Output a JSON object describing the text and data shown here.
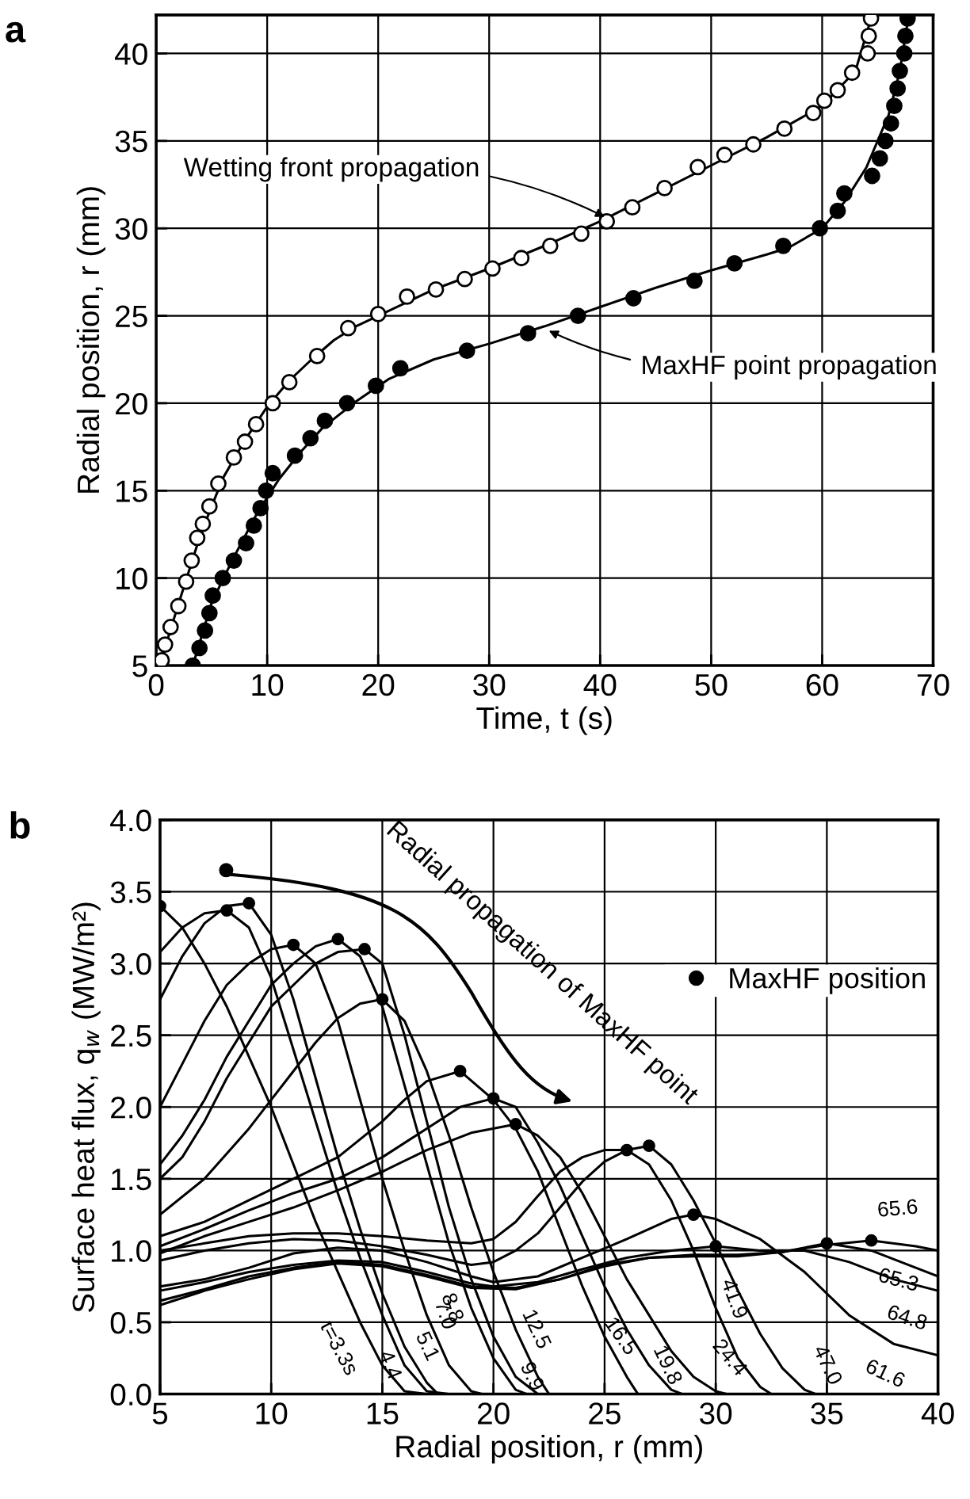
{
  "chart_data": [
    {
      "type": "scatter",
      "title": "a",
      "xlabel": "Time, t (s)",
      "ylabel": "Radial position, r (mm)",
      "xlim": [
        0,
        70
      ],
      "xticks": [
        0,
        10,
        20,
        30,
        40,
        50,
        60,
        70
      ],
      "ylim": [
        5,
        42.2
      ],
      "yticks": [
        5,
        10,
        15,
        20,
        25,
        30,
        35,
        40
      ],
      "grid": true,
      "legend": false,
      "marker": "circle",
      "series": [
        {
          "type": "line",
          "marker": "none",
          "color": "#000000",
          "x": [
            0.3,
            2,
            4,
            6,
            8,
            10,
            12,
            14,
            16,
            18,
            20,
            25,
            30,
            35,
            40,
            45,
            50,
            55,
            60,
            63,
            64.5
          ],
          "values": [
            5,
            8.5,
            12.5,
            15.7,
            17.9,
            19.8,
            21.3,
            22.5,
            23.6,
            24.4,
            25.0,
            26.5,
            27.7,
            29.0,
            30.4,
            32.0,
            33.6,
            35.2,
            37.0,
            39.0,
            42.2
          ]
        },
        {
          "type": "line",
          "marker": "none",
          "color": "#000000",
          "x": [
            3.3,
            5,
            7,
            9,
            11,
            13,
            15,
            18,
            21,
            25,
            30,
            35,
            40,
            45,
            50,
            55,
            57,
            60,
            62,
            64,
            66,
            67,
            67.8
          ],
          "values": [
            5,
            8.6,
            11.2,
            13.6,
            15.6,
            17.2,
            18.6,
            20.1,
            21.4,
            22.5,
            23.4,
            24.4,
            25.5,
            26.6,
            27.6,
            28.5,
            28.9,
            30.0,
            31.5,
            33.5,
            36.5,
            39,
            42.2
          ]
        },
        {
          "type": "scatter",
          "color": "#ffffff",
          "x": [
            0.5,
            0.8,
            1.3,
            2,
            2.7,
            3.2,
            3.7,
            4.2,
            4.8,
            5.6,
            7,
            8,
            9,
            10.5,
            12,
            14.5,
            17.3,
            20,
            22.6,
            25.2,
            27.8,
            30.3,
            32.9,
            35.5,
            38.3,
            40.6,
            42.9,
            45.8,
            48.8,
            51.2,
            53.8,
            56.6,
            59.2,
            60.2,
            61.4,
            62.7,
            64.1,
            64.2,
            64.4
          ],
          "values": [
            5.3,
            6.2,
            7.2,
            8.4,
            9.8,
            11,
            12.3,
            13.1,
            14.1,
            15.4,
            16.9,
            17.8,
            18.8,
            20,
            21.2,
            22.7,
            24.3,
            25.1,
            26.1,
            26.5,
            27.1,
            27.7,
            28.3,
            29,
            29.7,
            30.4,
            31.2,
            32.3,
            33.5,
            34.2,
            34.8,
            35.7,
            36.6,
            37.3,
            37.9,
            38.9,
            40,
            41,
            42
          ]
        },
        {
          "type": "scatter",
          "color": "#000000",
          "x": [
            3.3,
            3.9,
            4.4,
            4.8,
            5.1,
            6,
            7,
            8.1,
            8.8,
            9.4,
            9.9,
            10.5,
            12.5,
            13.9,
            15.2,
            17.2,
            19.8,
            22,
            28,
            33.5,
            38,
            43,
            48.5,
            52.1,
            56.5,
            59.8,
            61.4,
            62,
            64.5,
            65.2,
            65.7,
            66.2,
            66.5,
            66.8,
            67,
            67.4,
            67.5,
            67.7
          ],
          "values": [
            5,
            6,
            7,
            8,
            9,
            10,
            11,
            12,
            13,
            14,
            15,
            16,
            17,
            18,
            19,
            20,
            21,
            22,
            23,
            24,
            25,
            26,
            27,
            28,
            29,
            30,
            31,
            32,
            33,
            34,
            35,
            36,
            37,
            38,
            39,
            40,
            41,
            42
          ]
        }
      ],
      "annotations": [
        {
          "text": "Wetting front propagation",
          "x": 40.6,
          "y": 30.6
        },
        {
          "text": "MaxHF point propagation",
          "x": 35.2,
          "y": 24.2
        }
      ]
    },
    {
      "type": "line",
      "title": "b",
      "xlabel": "Radial position, r (mm)",
      "ylabel": "Surface heat flux, q$_{w}$ (MW/m²)",
      "xlim": [
        5,
        40
      ],
      "xticks": [
        5,
        10,
        15,
        20,
        25,
        30,
        35,
        40
      ],
      "ylim": [
        0,
        4
      ],
      "yticks": [
        {
          "value": 0,
          "label": "0.0"
        },
        {
          "value": 0.5,
          "label": "0.5"
        },
        {
          "value": 1,
          "label": "1.0"
        },
        {
          "value": 1.5,
          "label": "1.5"
        },
        {
          "value": 2,
          "label": "2.0"
        },
        {
          "value": 2.5,
          "label": "2.5"
        },
        {
          "value": 3,
          "label": "3.0"
        },
        {
          "value": 3.5,
          "label": "3.5"
        },
        {
          "value": 4,
          "label": "4.0"
        }
      ],
      "grid": true,
      "legend": "right",
      "line_style": "solid",
      "marker": "none",
      "series": [
        {
          "name": "t=3.3s",
          "color": "#000000",
          "x": [
            5,
            6,
            7,
            8,
            9,
            10,
            11,
            12,
            13,
            14,
            15,
            16,
            17
          ],
          "values": [
            3.4,
            3.25,
            3.0,
            2.7,
            2.35,
            2.0,
            1.6,
            1.2,
            0.85,
            0.5,
            0.2,
            0.02,
            0
          ]
        },
        {
          "name": "4.4",
          "color": "#000000",
          "x": [
            5,
            6,
            7,
            8,
            9,
            10,
            11,
            12,
            13,
            14,
            15,
            16,
            17,
            18
          ],
          "values": [
            3.08,
            3.25,
            3.35,
            3.37,
            3.25,
            2.9,
            2.4,
            1.9,
            1.4,
            0.95,
            0.55,
            0.2,
            0.02,
            0
          ]
        },
        {
          "name": "5.1",
          "color": "#000000",
          "x": [
            5,
            6,
            7,
            8,
            9,
            10,
            11,
            12,
            13,
            14,
            15,
            16,
            17,
            17.5
          ],
          "values": [
            2.75,
            3.05,
            3.28,
            3.4,
            3.42,
            3.2,
            2.75,
            2.2,
            1.65,
            1.15,
            0.7,
            0.33,
            0.08,
            0
          ]
        },
        {
          "name": "7.0",
          "color": "#000000",
          "x": [
            5,
            6,
            7,
            8,
            9,
            10,
            11,
            12,
            13,
            14,
            15,
            16,
            17,
            18,
            19,
            19.5
          ],
          "values": [
            2.0,
            2.3,
            2.6,
            2.85,
            3.0,
            3.1,
            3.13,
            3.0,
            2.6,
            2.05,
            1.5,
            1.0,
            0.55,
            0.2,
            0.02,
            0
          ]
        },
        {
          "name": "8.8",
          "color": "#000000",
          "x": [
            5,
            6,
            7,
            8,
            9,
            10,
            11,
            12,
            13,
            14,
            15,
            16,
            17,
            18,
            19,
            20,
            21,
            21.5
          ],
          "values": [
            1.6,
            1.8,
            2.05,
            2.35,
            2.6,
            2.85,
            3.0,
            3.12,
            3.17,
            3.05,
            2.7,
            2.15,
            1.6,
            1.05,
            0.6,
            0.25,
            0.03,
            0
          ]
        },
        {
          "name": "9.9",
          "color": "#000000",
          "x": [
            5,
            6,
            7,
            8,
            9,
            10,
            11,
            12,
            13,
            14.2,
            15,
            16,
            17,
            18,
            19,
            20,
            21,
            22
          ],
          "values": [
            1.5,
            1.65,
            1.9,
            2.2,
            2.45,
            2.7,
            2.85,
            3.0,
            3.08,
            3.1,
            3.0,
            2.5,
            1.9,
            1.3,
            0.8,
            0.4,
            0.12,
            0
          ]
        },
        {
          "name": "12.5",
          "color": "#000000",
          "x": [
            5,
            7,
            9,
            10,
            11,
            12,
            13,
            14,
            15,
            16,
            17,
            18,
            19,
            20,
            21,
            22,
            22.5
          ],
          "values": [
            1.25,
            1.5,
            1.85,
            2.05,
            2.25,
            2.45,
            2.62,
            2.72,
            2.75,
            2.6,
            2.25,
            1.8,
            1.3,
            0.85,
            0.45,
            0.12,
            0
          ]
        },
        {
          "name": "16.5",
          "color": "#000000",
          "x": [
            5,
            7,
            9,
            11,
            13,
            15,
            16,
            17,
            18.5,
            20,
            21,
            22,
            23,
            24,
            25,
            26,
            26.5
          ],
          "values": [
            1.1,
            1.2,
            1.35,
            1.5,
            1.65,
            1.9,
            2.05,
            2.18,
            2.25,
            2.05,
            1.85,
            1.55,
            1.15,
            0.75,
            0.4,
            0.12,
            0
          ]
        },
        {
          "name": "19.8",
          "color": "#000000",
          "x": [
            5,
            7,
            9,
            11,
            13,
            15,
            17,
            18.5,
            20,
            21,
            22,
            23,
            24,
            25,
            26,
            27,
            28,
            28.5
          ],
          "values": [
            1.03,
            1.15,
            1.28,
            1.4,
            1.5,
            1.65,
            1.85,
            2.0,
            2.06,
            2.0,
            1.75,
            1.45,
            1.1,
            0.75,
            0.45,
            0.2,
            0.03,
            0
          ]
        },
        {
          "name": "24.4",
          "color": "#000000",
          "x": [
            5,
            7,
            9,
            11,
            13,
            15,
            17,
            19,
            21,
            22,
            23,
            24,
            25,
            26,
            27,
            28,
            29,
            30,
            30.5
          ],
          "values": [
            0.98,
            1.1,
            1.2,
            1.3,
            1.42,
            1.55,
            1.7,
            1.82,
            1.88,
            1.8,
            1.65,
            1.4,
            1.1,
            0.8,
            0.55,
            0.3,
            0.12,
            0.02,
            0
          ]
        },
        {
          "name": "41.9",
          "color": "#000000",
          "x": [
            5,
            7,
            9,
            11,
            13,
            15,
            17,
            19,
            20,
            21,
            22,
            23,
            24,
            25,
            26,
            27,
            28,
            29,
            30,
            31,
            32,
            32.5
          ],
          "values": [
            1.0,
            1.05,
            1.1,
            1.12,
            1.12,
            1.1,
            1.07,
            1.05,
            1.08,
            1.2,
            1.38,
            1.55,
            1.65,
            1.7,
            1.7,
            1.6,
            1.35,
            1.0,
            0.6,
            0.25,
            0.05,
            0
          ]
        },
        {
          "name": "47.0",
          "color": "#000000",
          "x": [
            5,
            7,
            9,
            11,
            13,
            15,
            17,
            19,
            20,
            21,
            22,
            23,
            24,
            25,
            26,
            27,
            28,
            29,
            30,
            31,
            32,
            33,
            34,
            34.5
          ],
          "values": [
            0.93,
            1.0,
            1.05,
            1.08,
            1.07,
            1.03,
            0.97,
            0.9,
            0.92,
            1.0,
            1.12,
            1.3,
            1.48,
            1.62,
            1.7,
            1.73,
            1.6,
            1.35,
            1.05,
            0.72,
            0.42,
            0.18,
            0.03,
            0
          ]
        },
        {
          "name": "61.6",
          "color": "#000000",
          "x": [
            5,
            7,
            9,
            11,
            13,
            15,
            17,
            19,
            20,
            22,
            24,
            26,
            28,
            29,
            30,
            32,
            34,
            36,
            38,
            40
          ],
          "values": [
            0.75,
            0.8,
            0.88,
            0.98,
            1.02,
            1.0,
            0.92,
            0.82,
            0.78,
            0.82,
            0.95,
            1.08,
            1.22,
            1.25,
            1.22,
            1.08,
            0.85,
            0.55,
            0.35,
            0.27
          ]
        },
        {
          "name": "64.8",
          "color": "#000000",
          "x": [
            5,
            7,
            9,
            11,
            13,
            15,
            17,
            19,
            20,
            22,
            24,
            26,
            28,
            30,
            32,
            34,
            36,
            38,
            40
          ],
          "values": [
            0.72,
            0.78,
            0.85,
            0.9,
            0.93,
            0.92,
            0.85,
            0.77,
            0.75,
            0.78,
            0.87,
            0.95,
            1.0,
            1.03,
            1.0,
            1.0,
            0.92,
            0.8,
            0.72
          ]
        },
        {
          "name": "65.3",
          "color": "#000000",
          "x": [
            5,
            7,
            9,
            11,
            13,
            15,
            17,
            19,
            21,
            23,
            25,
            27,
            29,
            31,
            33,
            35,
            37,
            39,
            40
          ],
          "values": [
            0.65,
            0.73,
            0.82,
            0.88,
            0.92,
            0.9,
            0.83,
            0.75,
            0.74,
            0.8,
            0.9,
            0.95,
            0.96,
            0.96,
            0.99,
            1.05,
            1.0,
            0.88,
            0.82
          ]
        },
        {
          "name": "65.6",
          "color": "#000000",
          "x": [
            5,
            7,
            9,
            11,
            13,
            15,
            17,
            19,
            21,
            23,
            25,
            27,
            29,
            31,
            33,
            35,
            37,
            39,
            40
          ],
          "values": [
            0.62,
            0.72,
            0.8,
            0.87,
            0.91,
            0.89,
            0.82,
            0.74,
            0.73,
            0.8,
            0.89,
            0.95,
            0.97,
            0.97,
            0.99,
            1.04,
            1.07,
            1.03,
            1.0
          ]
        },
        {
          "type": "scatter",
          "marker": "circle",
          "name": "MaxHF position",
          "color": "#000000",
          "x": [
            5,
            8,
            9,
            11,
            13,
            14.2,
            15,
            18.5,
            20,
            21,
            26,
            27,
            29,
            30,
            35,
            37
          ],
          "values": [
            3.4,
            3.37,
            3.42,
            3.13,
            3.17,
            3.1,
            2.75,
            2.25,
            2.06,
            1.88,
            1.7,
            1.73,
            1.25,
            1.03,
            1.05,
            1.07
          ]
        }
      ],
      "annotations": [
        "Radial propagation of MaxHF point"
      ]
    }
  ]
}
